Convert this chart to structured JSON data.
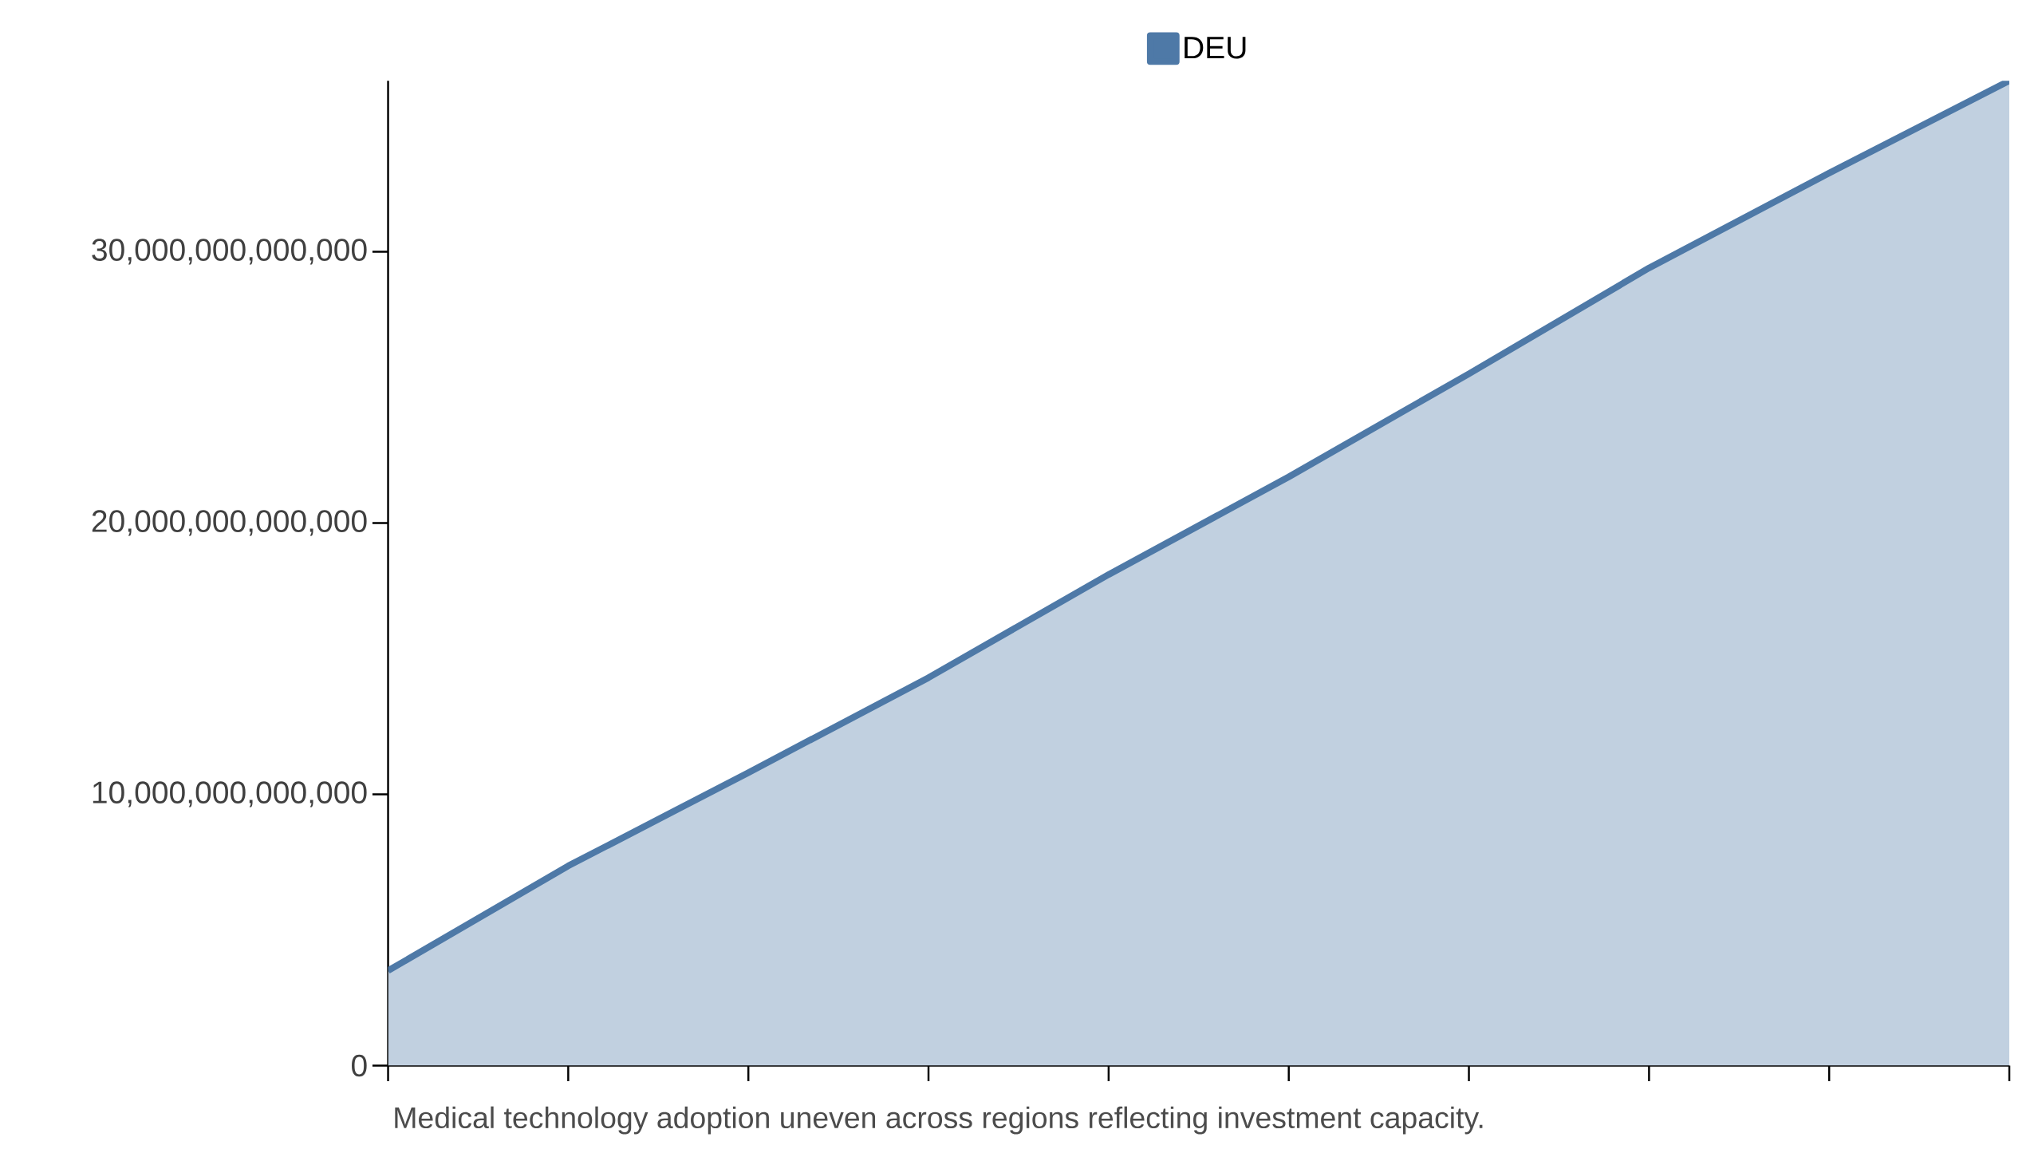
{
  "chart_data": {
    "type": "area",
    "categories": [
      null,
      null,
      null,
      null,
      null,
      null,
      null,
      null,
      null,
      null
    ],
    "series": [
      {
        "name": "DEU",
        "color": "#4e79a7",
        "values": [
          3500000000000.0,
          7360000000000.0,
          10800000000000.0,
          14300000000000.0,
          18100000000000.0,
          21700000000000.0,
          25500000000000.0,
          29400000000000.0,
          32900000000000.0,
          36300000000000.0
        ]
      }
    ],
    "ylim": [
      0,
      36300000000000.0
    ],
    "yticks": [
      0,
      {
        "value": 10000000000000,
        "label": "10,000,000,000,000"
      },
      {
        "value": 20000000000000,
        "label": "20,000,000,000,000"
      },
      {
        "value": 30000000000000,
        "label": "30,000,000,000,000"
      }
    ],
    "legend": "top",
    "annotations": [
      "Medical technology adoption uneven across regions reflecting investment capacity."
    ]
  }
}
